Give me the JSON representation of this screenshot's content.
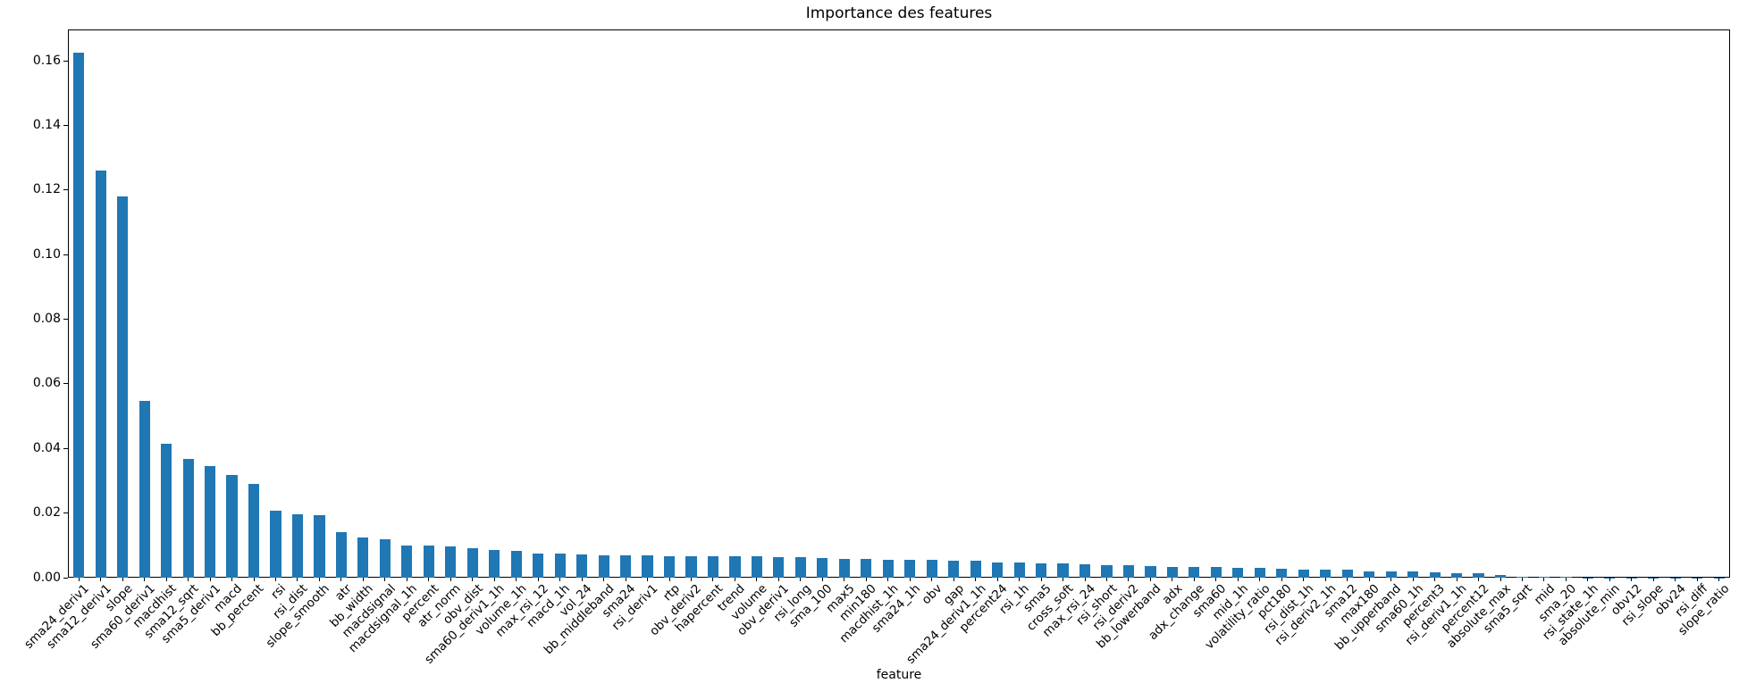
{
  "chart_data": {
    "type": "bar",
    "title": "Importance des features",
    "xlabel": "feature",
    "ylabel": "",
    "bar_color": "#1f77b4",
    "axis_color": "#000000",
    "background_color": "#ffffff",
    "grid": false,
    "legend": null,
    "ylim": [
      0,
      0.1697
    ],
    "yticks": [
      0.0,
      0.02,
      0.04,
      0.06,
      0.08,
      0.1,
      0.12,
      0.14,
      0.16
    ],
    "categories": [
      "sma24_deriv1",
      "sma12_deriv1",
      "slope",
      "sma60_deriv1",
      "macdhist",
      "sma12_sqrt",
      "sma5_deriv1",
      "macd",
      "bb_percent",
      "rsi",
      "rsi_dist",
      "slope_smooth",
      "atr",
      "bb_width",
      "macdsignal",
      "macdsignal_1h",
      "percent",
      "atr_norm",
      "obv_dist",
      "sma60_deriv1_1h",
      "volume_1h",
      "max_rsi_12",
      "macd_1h",
      "vol_24",
      "bb_middleband",
      "sma24",
      "rsi_deriv1",
      "rtp",
      "obv_deriv2",
      "hapercent",
      "trend",
      "volume",
      "obv_deriv1",
      "rsi_long",
      "sma_100",
      "max5",
      "min180",
      "macdhist_1h",
      "sma24_1h",
      "obv",
      "gap",
      "sma24_deriv1_1h",
      "percent24",
      "rsi_1h",
      "sma5",
      "cross_soft",
      "max_rsi_24",
      "rsi_short",
      "rsi_deriv2",
      "bb_lowerband",
      "adx",
      "adx_change",
      "sma60",
      "mid_1h",
      "volatility_ratio",
      "pct180",
      "rsi_dist_1h",
      "rsi_deriv2_1h",
      "sma12",
      "max180",
      "bb_upperband",
      "sma60_1h",
      "percent3",
      "rsi_deriv1_1h",
      "percent12",
      "absolute_max",
      "sma5_sqrt",
      "mid",
      "sma_20",
      "rsi_state_1h",
      "absolute_min",
      "obv12",
      "rsi_slope",
      "obv24",
      "rsi_diff",
      "slope_ratio"
    ],
    "values": [
      0.1625,
      0.126,
      0.118,
      0.0547,
      0.0415,
      0.0368,
      0.0346,
      0.0317,
      0.0289,
      0.0207,
      0.0195,
      0.0194,
      0.0142,
      0.0124,
      0.0119,
      0.01,
      0.0099,
      0.0098,
      0.009,
      0.0085,
      0.0082,
      0.0076,
      0.0074,
      0.0072,
      0.007,
      0.0069,
      0.0068,
      0.0067,
      0.0067,
      0.0066,
      0.0066,
      0.0065,
      0.0064,
      0.0063,
      0.0061,
      0.0059,
      0.0057,
      0.0056,
      0.0055,
      0.0054,
      0.0053,
      0.0052,
      0.0047,
      0.0046,
      0.0045,
      0.0043,
      0.0042,
      0.0039,
      0.0038,
      0.0037,
      0.0034,
      0.0033,
      0.0033,
      0.0031,
      0.003,
      0.0027,
      0.0026,
      0.0025,
      0.0024,
      0.002,
      0.0019,
      0.0019,
      0.0016,
      0.0015,
      0.0015,
      0.0008,
      0.0004,
      0.0002,
      0.00015,
      0.0001,
      0.0001,
      8e-05,
      6e-05,
      5e-05,
      4e-05,
      3e-05
    ]
  }
}
